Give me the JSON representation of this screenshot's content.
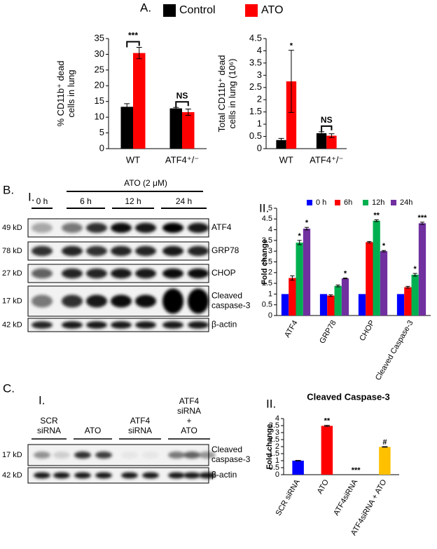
{
  "panel_labels": {
    "a": "A.",
    "b": "B.",
    "b1": "I.",
    "b2": "II.",
    "c": "C.",
    "c1": "I.",
    "c2": "II."
  },
  "chart_data": [
    {
      "type": "bar",
      "ylabel": [
        "% CD11b⁺ dead",
        "cells in lung"
      ],
      "categories": [
        "WT",
        "ATF4⁺/⁻"
      ],
      "series": [
        {
          "name": "Control",
          "color": "#000000",
          "values": [
            13.3,
            12.8
          ],
          "errors": [
            1.0,
            0.3
          ]
        },
        {
          "name": "ATO",
          "color": "#ff0000",
          "values": [
            30.4,
            11.6
          ],
          "errors": [
            1.8,
            1.0
          ]
        }
      ],
      "ylim": [
        0,
        35
      ],
      "yticks": [
        0,
        5,
        10,
        15,
        20,
        25,
        30,
        35
      ],
      "annotations": [
        "***",
        "NS"
      ]
    },
    {
      "type": "bar",
      "ylabel": [
        "Total CD11b⁺ dead",
        "cells in lung (10⁶)"
      ],
      "categories": [
        "WT",
        "ATF4⁺/⁻"
      ],
      "series": [
        {
          "color": "#000000",
          "values": [
            0.35,
            0.63
          ],
          "errors": [
            0.07,
            0.06
          ]
        },
        {
          "color": "#ff0000",
          "values": [
            2.75,
            0.53
          ],
          "errors": [
            1.27,
            0.08
          ]
        }
      ],
      "ylim": [
        0,
        4.5
      ],
      "yticks": [
        0,
        0.5,
        1,
        1.5,
        2,
        2.5,
        3,
        3.5,
        4,
        4.5
      ],
      "annotations": [
        "*",
        "NS"
      ]
    },
    {
      "type": "bar",
      "ylabel": [
        "Fold change"
      ],
      "categories": [
        "ATF4",
        "GRP78",
        "CHOP",
        "Cleaved Caspase-3"
      ],
      "series": [
        {
          "name": "0 h",
          "color": "#0000ff",
          "values": [
            1,
            1,
            1,
            1
          ],
          "errors": [
            0,
            0,
            0,
            0
          ]
        },
        {
          "name": "6h",
          "color": "#ff0000",
          "values": [
            1.75,
            0.93,
            3.42,
            1.32
          ],
          "errors": [
            0.1,
            0.04,
            0.03,
            0.04
          ]
        },
        {
          "name": "12h",
          "color": "#00b050",
          "values": [
            3.4,
            1.38,
            4.42,
            1.9
          ],
          "errors": [
            0.1,
            0.04,
            0.04,
            0.06
          ]
        },
        {
          "name": "24h",
          "color": "#7030a0",
          "values": [
            4.05,
            1.73,
            3.0,
            4.3
          ],
          "errors": [
            0.06,
            0.02,
            0.03,
            0.05
          ]
        }
      ],
      "ylim": [
        0,
        5
      ],
      "yticks": [
        0,
        0.5,
        1,
        1.5,
        2,
        2.5,
        3,
        3.5,
        4,
        4.5,
        5
      ],
      "annotations": [
        "*",
        "*",
        "*",
        "**",
        "*",
        "*",
        "***"
      ]
    },
    {
      "type": "bar",
      "title": "Cleaved Caspase-3",
      "ylabel": [
        "Fold change"
      ],
      "categories": [
        "SCR siRNA",
        "ATO",
        "ATF4siRNA",
        "ATF4siRNA + ATO"
      ],
      "series": [
        {
          "colors": [
            "#0000ff",
            "#ff0000",
            "#999999",
            "#ffc000"
          ],
          "values": [
            1,
            3.48,
            0,
            1.98
          ],
          "errors": [
            0.02,
            0.04,
            0,
            0.02
          ]
        }
      ],
      "ylim": [
        0,
        4
      ],
      "yticks": [
        0,
        0.5,
        1,
        1.5,
        2,
        2.5,
        3,
        3.5,
        4
      ],
      "annotations": [
        "**",
        "***",
        "#"
      ]
    }
  ],
  "blot_b": {
    "treatment": "ATO (2 μM)",
    "times": [
      "0 h",
      "6 h",
      "12 h",
      "24 h"
    ],
    "rows": [
      {
        "kd": "49 kD",
        "protein": [
          "ATF4"
        ]
      },
      {
        "kd": "78 kD",
        "protein": [
          "GRP78"
        ]
      },
      {
        "kd": "27 kD",
        "protein": [
          "CHOP"
        ]
      },
      {
        "kd": "17 kD",
        "protein": [
          "Cleaved",
          "caspase-3"
        ]
      },
      {
        "kd": "42 kD",
        "protein": [
          "β-actin"
        ]
      }
    ]
  },
  "blot_c": {
    "groups": [
      [
        "SCR",
        "siRNA"
      ],
      [
        "ATO"
      ],
      [
        "ATF4",
        "siRNA"
      ],
      [
        "ATF4",
        "siRNA",
        "+",
        "ATO"
      ]
    ],
    "rows": [
      {
        "kd": "17 kD",
        "protein": [
          "Cleaved",
          "caspase-3"
        ]
      },
      {
        "kd": "42 kD",
        "protein": [
          "β-actin"
        ]
      }
    ]
  }
}
